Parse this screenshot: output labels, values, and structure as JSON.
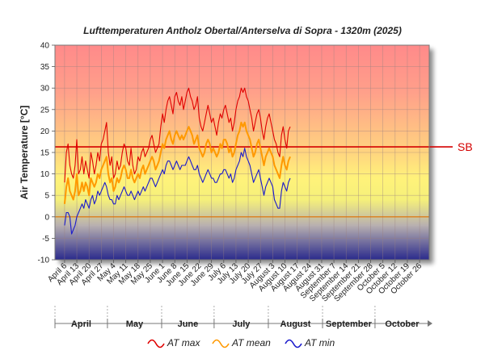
{
  "chart_data": {
    "type": "line",
    "title": "Lufttemperaturen Antholz Obertal/Anterselva di Sopra - 1320m (2025)",
    "ylabel": "Air Temperature [°C]",
    "ylim": [
      -10,
      40
    ],
    "yticks": [
      -10,
      -5,
      0,
      5,
      10,
      15,
      20,
      25,
      30,
      35,
      40
    ],
    "x_start": "2025-04-01",
    "x_end": "2025-10-31",
    "x_ticks": [
      "April 6",
      "April 13",
      "April 20",
      "April 27",
      "May 4",
      "May 11",
      "May 18",
      "May 25",
      "June 1",
      "June 8",
      "June 15",
      "June 22",
      "June 29",
      "July 6",
      "July 13",
      "July 20",
      "July 27",
      "August 3",
      "August 10",
      "August 17",
      "August 24",
      "August 31",
      "September 7",
      "September 14",
      "September 21",
      "September 28",
      "October 5",
      "October 12",
      "October 19",
      "October 26"
    ],
    "months": [
      "April",
      "May",
      "June",
      "July",
      "August",
      "September",
      "October"
    ],
    "reference_line": {
      "label": "SB",
      "value": 16.3,
      "color": "#d40000"
    },
    "zero_line_color": "#e07000",
    "grid": true,
    "legend_position": "bottom",
    "series": [
      {
        "name": "AT max",
        "color": "#e00000",
        "start": "2025-04-06",
        "values": [
          8,
          15,
          17,
          12,
          10,
          9,
          12,
          18,
          10,
          11,
          14,
          10,
          13,
          11,
          9,
          15,
          13,
          10,
          12,
          15,
          13,
          17,
          18,
          20,
          22,
          15,
          12,
          14,
          9,
          10,
          13,
          11,
          12,
          15,
          17,
          16,
          13,
          12,
          16,
          12,
          10,
          11,
          14,
          13,
          15,
          16,
          14,
          15,
          16,
          18,
          19,
          17,
          15,
          16,
          17,
          21,
          24,
          22,
          25,
          27,
          28,
          26,
          24,
          28,
          29,
          27,
          26,
          28,
          25,
          27,
          29,
          30,
          28,
          27,
          25,
          26,
          28,
          23,
          21,
          20,
          22,
          24,
          26,
          24,
          22,
          23,
          21,
          19,
          22,
          24,
          23,
          25,
          26,
          24,
          22,
          23,
          20,
          22,
          25,
          27,
          28,
          30,
          29,
          30,
          28,
          27,
          25,
          23,
          20,
          22,
          24,
          25,
          23,
          20,
          18,
          21,
          23,
          24,
          22,
          20,
          18,
          17,
          15,
          14,
          19,
          21,
          18,
          16,
          20,
          21
        ]
      },
      {
        "name": "AT mean",
        "color": "#ff9900",
        "start": "2025-04-06",
        "values": [
          3,
          7,
          9,
          6,
          5,
          4,
          6,
          10,
          5,
          6,
          8,
          6,
          8,
          7,
          5,
          9,
          8,
          7,
          8,
          10,
          9,
          11,
          12,
          13,
          14,
          10,
          8,
          9,
          6,
          7,
          9,
          8,
          9,
          11,
          12,
          11,
          9,
          9,
          11,
          9,
          8,
          9,
          10,
          9,
          11,
          12,
          10,
          11,
          12,
          13,
          14,
          13,
          11,
          12,
          13,
          15,
          17,
          16,
          18,
          19,
          20,
          18,
          17,
          19,
          20,
          19,
          18,
          19,
          18,
          19,
          20,
          21,
          20,
          19,
          17,
          18,
          19,
          16,
          15,
          14,
          15,
          17,
          18,
          17,
          15,
          16,
          15,
          14,
          15,
          17,
          16,
          18,
          18,
          17,
          15,
          16,
          14,
          15,
          17,
          19,
          20,
          22,
          21,
          22,
          20,
          19,
          18,
          16,
          14,
          15,
          17,
          18,
          16,
          14,
          12,
          14,
          15,
          16,
          15,
          14,
          12,
          11,
          10,
          9,
          12,
          14,
          12,
          11,
          13,
          14
        ]
      },
      {
        "name": "AT min",
        "color": "#1a1acc",
        "start": "2025-04-06",
        "values": [
          -2,
          1,
          1,
          0,
          -4,
          -3,
          -2,
          0,
          1,
          2,
          3,
          2,
          4,
          3,
          2,
          4,
          5,
          3,
          4,
          6,
          5,
          6,
          7,
          8,
          7,
          5,
          4,
          4,
          3,
          3,
          5,
          4,
          5,
          6,
          7,
          6,
          5,
          5,
          6,
          5,
          4,
          5,
          6,
          5,
          6,
          7,
          6,
          7,
          8,
          9,
          9,
          8,
          7,
          8,
          9,
          10,
          11,
          10,
          12,
          13,
          13,
          12,
          11,
          12,
          13,
          12,
          11,
          12,
          12,
          12,
          13,
          14,
          13,
          12,
          11,
          11,
          12,
          10,
          9,
          8,
          9,
          10,
          11,
          10,
          9,
          9,
          8,
          8,
          9,
          10,
          10,
          11,
          11,
          10,
          9,
          10,
          8,
          9,
          11,
          12,
          13,
          15,
          14,
          16,
          14,
          13,
          12,
          10,
          8,
          9,
          10,
          11,
          9,
          7,
          5,
          7,
          8,
          9,
          8,
          7,
          4,
          3,
          2,
          2,
          6,
          8,
          7,
          6,
          8,
          9
        ]
      }
    ]
  }
}
